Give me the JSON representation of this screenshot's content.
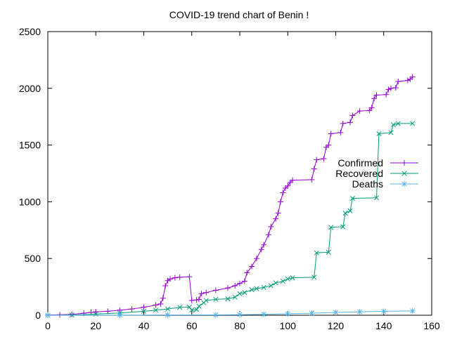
{
  "chart_data": {
    "type": "line",
    "title": "COVID-19 trend chart of Benin !",
    "xlabel": "",
    "ylabel": "",
    "xlim": [
      0,
      160
    ],
    "ylim": [
      0,
      2500
    ],
    "x_ticks": [
      0,
      20,
      40,
      60,
      80,
      100,
      120,
      140,
      160
    ],
    "y_ticks": [
      0,
      500,
      1000,
      1500,
      2000,
      2500
    ],
    "x_tick_labels": [
      "0",
      "20",
      "40",
      "60",
      "80",
      "100",
      "120",
      "140",
      "160"
    ],
    "y_tick_labels": [
      "0",
      "500",
      "1000",
      "1500",
      "2000",
      "2500"
    ],
    "grid": false,
    "legend_position": "right",
    "series": [
      {
        "name": "Confirmed",
        "color": "#9400d3",
        "marker": "plus",
        "points": [
          [
            0,
            2
          ],
          [
            5,
            4
          ],
          [
            10,
            8
          ],
          [
            15,
            18
          ],
          [
            18,
            25
          ],
          [
            20,
            30
          ],
          [
            25,
            35
          ],
          [
            30,
            45
          ],
          [
            35,
            55
          ],
          [
            40,
            70
          ],
          [
            45,
            90
          ],
          [
            47,
            100
          ],
          [
            48,
            150
          ],
          [
            49,
            260
          ],
          [
            50,
            305
          ],
          [
            51,
            320
          ],
          [
            53,
            330
          ],
          [
            55,
            335
          ],
          [
            59,
            339
          ],
          [
            60,
            130
          ],
          [
            62,
            135
          ],
          [
            63,
            140
          ],
          [
            64,
            190
          ],
          [
            66,
            200
          ],
          [
            70,
            220
          ],
          [
            75,
            240
          ],
          [
            78,
            260
          ],
          [
            80,
            280
          ],
          [
            82,
            300
          ],
          [
            83,
            375
          ],
          [
            85,
            430
          ],
          [
            87,
            500
          ],
          [
            89,
            580
          ],
          [
            90,
            620
          ],
          [
            92,
            710
          ],
          [
            93,
            780
          ],
          [
            95,
            850
          ],
          [
            96,
            900
          ],
          [
            97,
            1000
          ],
          [
            98,
            1080
          ],
          [
            99,
            1120
          ],
          [
            100,
            1140
          ],
          [
            101,
            1170
          ],
          [
            102,
            1190
          ],
          [
            110,
            1195
          ],
          [
            111,
            1290
          ],
          [
            112,
            1370
          ],
          [
            115,
            1380
          ],
          [
            116,
            1480
          ],
          [
            117,
            1500
          ],
          [
            118,
            1600
          ],
          [
            122,
            1610
          ],
          [
            123,
            1690
          ],
          [
            126,
            1700
          ],
          [
            127,
            1760
          ],
          [
            130,
            1800
          ],
          [
            134,
            1805
          ],
          [
            135,
            1830
          ],
          [
            136,
            1910
          ],
          [
            137,
            1940
          ],
          [
            141,
            1945
          ],
          [
            142,
            1990
          ],
          [
            143,
            2000
          ],
          [
            145,
            2005
          ],
          [
            146,
            2060
          ],
          [
            150,
            2070
          ],
          [
            151,
            2080
          ],
          [
            152,
            2100
          ]
        ]
      },
      {
        "name": "Recovered",
        "color": "#009e73",
        "marker": "x",
        "points": [
          [
            0,
            0
          ],
          [
            10,
            2
          ],
          [
            20,
            10
          ],
          [
            30,
            20
          ],
          [
            40,
            35
          ],
          [
            45,
            45
          ],
          [
            50,
            55
          ],
          [
            55,
            70
          ],
          [
            59,
            72
          ],
          [
            60,
            45
          ],
          [
            62,
            50
          ],
          [
            63,
            80
          ],
          [
            65,
            110
          ],
          [
            66,
            130
          ],
          [
            70,
            140
          ],
          [
            75,
            145
          ],
          [
            78,
            160
          ],
          [
            80,
            190
          ],
          [
            82,
            200
          ],
          [
            85,
            225
          ],
          [
            87,
            235
          ],
          [
            90,
            245
          ],
          [
            93,
            260
          ],
          [
            95,
            285
          ],
          [
            98,
            300
          ],
          [
            100,
            320
          ],
          [
            102,
            330
          ],
          [
            111,
            335
          ],
          [
            112,
            550
          ],
          [
            117,
            555
          ],
          [
            118,
            775
          ],
          [
            123,
            780
          ],
          [
            124,
            900
          ],
          [
            126,
            920
          ],
          [
            127,
            1030
          ],
          [
            137,
            1035
          ],
          [
            138,
            1600
          ],
          [
            143,
            1610
          ],
          [
            144,
            1680
          ],
          [
            146,
            1690
          ],
          [
            152,
            1690
          ]
        ]
      },
      {
        "name": "Deaths",
        "color": "#56b4e9",
        "marker": "star",
        "points": [
          [
            0,
            0
          ],
          [
            30,
            1
          ],
          [
            50,
            2
          ],
          [
            70,
            3
          ],
          [
            80,
            5
          ],
          [
            90,
            8
          ],
          [
            100,
            12
          ],
          [
            110,
            18
          ],
          [
            120,
            25
          ],
          [
            130,
            30
          ],
          [
            140,
            35
          ],
          [
            152,
            38
          ]
        ]
      }
    ]
  }
}
